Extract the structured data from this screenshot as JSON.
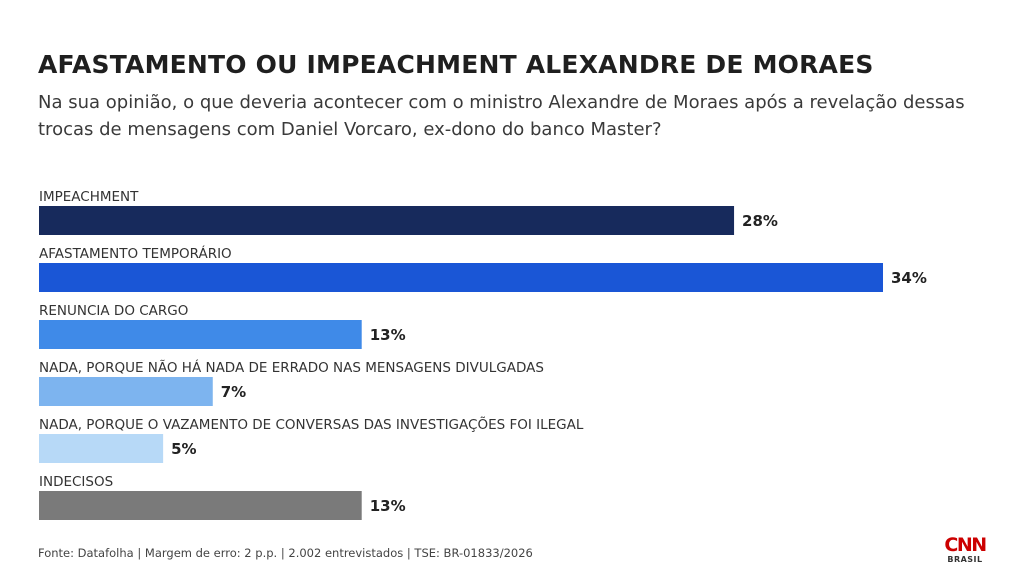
{
  "header": {
    "title": "AFASTAMENTO OU IMPEACHMENT ALEXANDRE DE MORAES",
    "subtitle": "Na sua opinião, o que deveria acontecer com o ministro Alexandre de Moraes após a revelação dessas trocas de mensagens com Daniel Vorcaro, ex-dono do banco Master?"
  },
  "chart_data": {
    "type": "bar",
    "orientation": "horizontal",
    "title": "AFASTAMENTO OU IMPEACHMENT ALEXANDRE DE MORAES",
    "categories": [
      "IMPEACHMENT",
      "AFASTAMENTO TEMPORÁRIO",
      "RENUNCIA DO CARGO",
      "NADA, PORQUE NÃO HÁ NADA DE ERRADO NAS MENSAGENS DIVULGADAS",
      "NADA, PORQUE O VAZAMENTO DE CONVERSAS DAS INVESTIGAÇÕES FOI ILEGAL",
      "INDECISOS"
    ],
    "values": [
      28,
      34,
      13,
      7,
      5,
      13
    ],
    "labels": [
      "28%",
      "34%",
      "13%",
      "7%",
      "5%",
      "13%"
    ],
    "colors": [
      "#172a5c",
      "#1a56d6",
      "#3f8ae8",
      "#7db4ef",
      "#b7d9f7",
      "#7a7a7a"
    ],
    "unit": "%",
    "xlim": [
      0,
      34
    ],
    "grid": false,
    "legend": "none"
  },
  "footer": {
    "source": "Fonte: Datafolha | Margem de erro: 2 p.p. | 2.002 entrevistados | TSE: BR-01833/2026"
  },
  "brand": {
    "logo_text": "CNN",
    "logo_sub": "BRASIL",
    "color": "#cc0000"
  }
}
